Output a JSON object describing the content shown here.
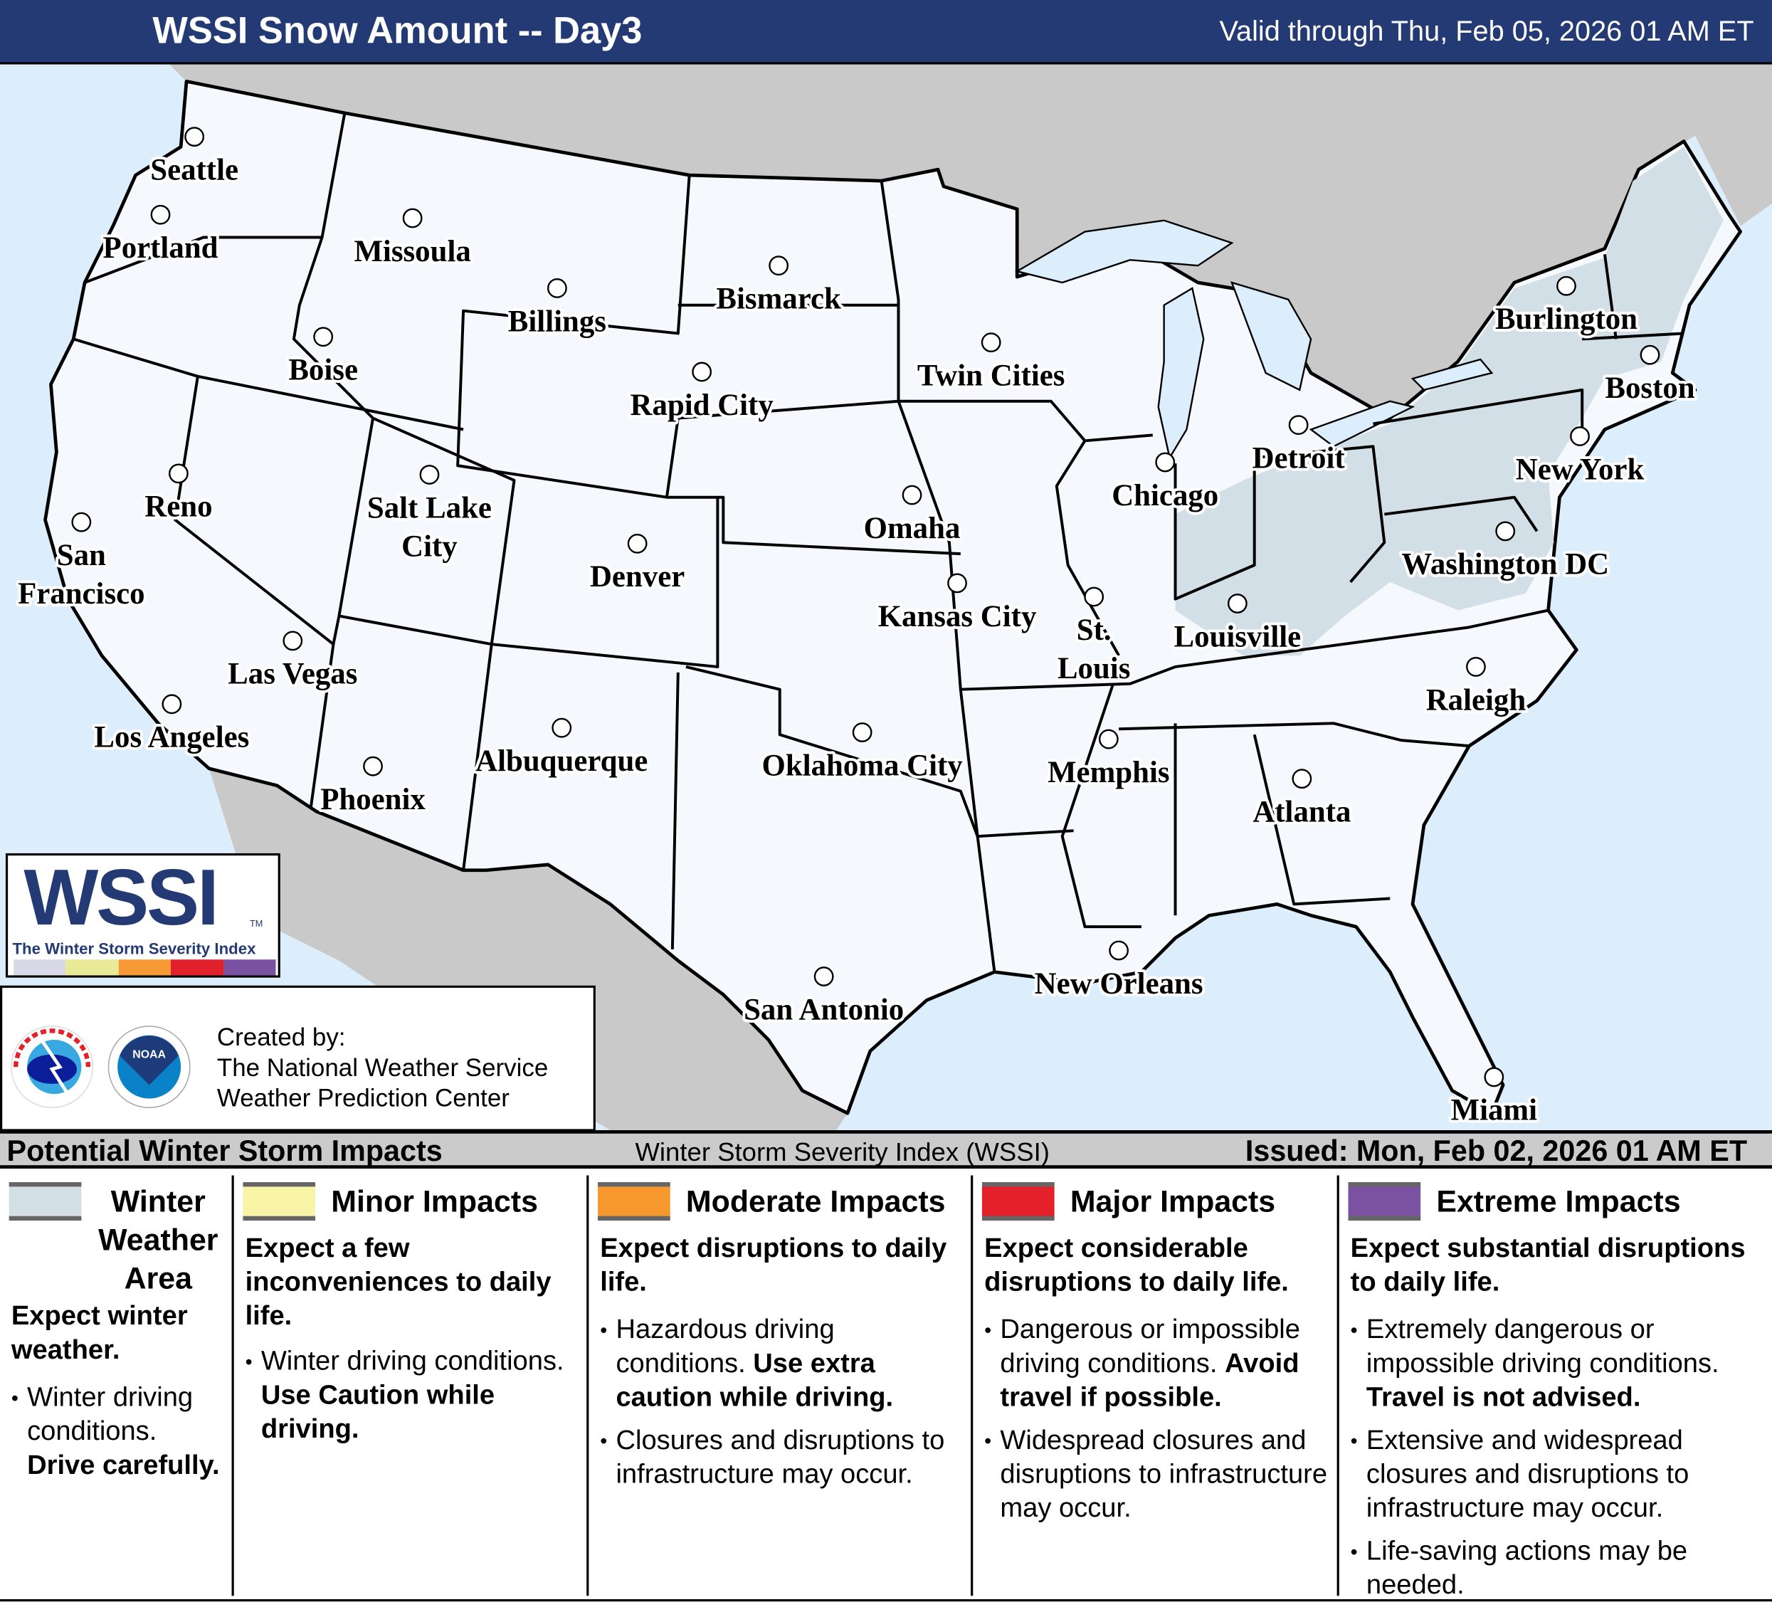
{
  "header": {
    "title": "WSSI Snow Amount -- Day3",
    "valid": "Valid through Thu, Feb 05, 2026 01 AM ET"
  },
  "colors": {
    "header_bg": "#243a74",
    "ocean": "#dcedfb",
    "foreign_land": "#c9c9c9",
    "us_land": "#f5f8fc",
    "winter_weather_area": "#d3dfe7",
    "minor": "#f9f5a6",
    "moderate": "#f7982f",
    "major": "#e4212a",
    "extreme": "#7b52a1",
    "logo_bar": [
      "#d9d8e6",
      "#e8ea98",
      "#f79a36",
      "#e0202b",
      "#7b52a1"
    ]
  },
  "cities": [
    {
      "name": "Seattle",
      "lines": [
        "Seattle"
      ]
    },
    {
      "name": "Portland",
      "lines": [
        "Portland"
      ]
    },
    {
      "name": "Missoula",
      "lines": [
        "Missoula"
      ]
    },
    {
      "name": "Billings",
      "lines": [
        "Billings"
      ]
    },
    {
      "name": "Boise",
      "lines": [
        "Boise"
      ]
    },
    {
      "name": "Bismarck",
      "lines": [
        "Bismarck"
      ]
    },
    {
      "name": "Rapid City",
      "lines": [
        "Rapid City"
      ]
    },
    {
      "name": "Twin Cities",
      "lines": [
        "Twin Cities"
      ]
    },
    {
      "name": "Burlington",
      "lines": [
        "Burlington"
      ]
    },
    {
      "name": "Boston",
      "lines": [
        "Boston"
      ]
    },
    {
      "name": "Detroit",
      "lines": [
        "Detroit"
      ]
    },
    {
      "name": "New York",
      "lines": [
        "New York"
      ]
    },
    {
      "name": "Chicago",
      "lines": [
        "Chicago"
      ]
    },
    {
      "name": "Reno",
      "lines": [
        "Reno"
      ]
    },
    {
      "name": "Salt Lake City",
      "lines": [
        "Salt Lake",
        "City"
      ]
    },
    {
      "name": "San Francisco",
      "lines": [
        "San",
        "Francisco"
      ]
    },
    {
      "name": "Omaha",
      "lines": [
        "Omaha"
      ]
    },
    {
      "name": "Denver",
      "lines": [
        "Denver"
      ]
    },
    {
      "name": "Washington DC",
      "lines": [
        "Washington DC"
      ]
    },
    {
      "name": "Kansas City",
      "lines": [
        "Kansas City"
      ]
    },
    {
      "name": "St. Louis",
      "lines": [
        "St.",
        "Louis"
      ]
    },
    {
      "name": "Louisville",
      "lines": [
        "Louisville"
      ]
    },
    {
      "name": "Las Vegas",
      "lines": [
        "Las Vegas"
      ]
    },
    {
      "name": "Raleigh",
      "lines": [
        "Raleigh"
      ]
    },
    {
      "name": "Los Angeles",
      "lines": [
        "Los Angeles"
      ]
    },
    {
      "name": "Albuquerque",
      "lines": [
        "Albuquerque"
      ]
    },
    {
      "name": "Oklahoma City",
      "lines": [
        "Oklahoma City"
      ]
    },
    {
      "name": "Memphis",
      "lines": [
        "Memphis"
      ]
    },
    {
      "name": "Phoenix",
      "lines": [
        "Phoenix"
      ]
    },
    {
      "name": "Atlanta",
      "lines": [
        "Atlanta"
      ]
    },
    {
      "name": "New Orleans",
      "lines": [
        "New Orleans"
      ]
    },
    {
      "name": "San Antonio",
      "lines": [
        "San Antonio"
      ]
    },
    {
      "name": "Miami",
      "lines": [
        "Miami"
      ]
    }
  ],
  "logo": {
    "wordmark": "WSSI",
    "tm": "TM",
    "tagline": "The Winter Storm Severity Index"
  },
  "credits": {
    "line1": "Created by:",
    "line2": "The National Weather Service",
    "line3": "Weather Prediction Center",
    "nws_seal_text": "NATIONAL WEATHER SERVICE",
    "noaa_seal_text": "NOAA"
  },
  "legend_bar": {
    "left": "Potential Winter Storm Impacts",
    "middle": "Winter Storm Severity Index (WSSI)",
    "right": "Issued: Mon, Feb 02, 2026 01 AM ET"
  },
  "legend": [
    {
      "heading_lines": [
        "Winter",
        "Weather",
        "Area"
      ],
      "summary": "Expect winter weather.",
      "bullets": [
        {
          "text": "Winter driving conditions. ",
          "bold": "Drive carefully."
        }
      ]
    },
    {
      "heading_lines": [
        "Minor Impacts"
      ],
      "summary": "Expect a few inconveniences to daily life.",
      "bullets": [
        {
          "text": "Winter driving conditions. ",
          "bold": "Use Caution while driving."
        }
      ]
    },
    {
      "heading_lines": [
        "Moderate Impacts"
      ],
      "summary": "Expect disruptions to daily life.",
      "bullets": [
        {
          "text": "Hazardous driving conditions. ",
          "bold": "Use extra caution while driving."
        },
        {
          "text": "Closures and disruptions to infrastructure may occur.",
          "bold": ""
        }
      ]
    },
    {
      "heading_lines": [
        "Major Impacts"
      ],
      "summary": "Expect considerable disruptions to daily life.",
      "bullets": [
        {
          "text": "Dangerous or impossible driving conditions. ",
          "bold": "Avoid travel if possible."
        },
        {
          "text": "Widespread closures and disruptions to infrastructure may occur.",
          "bold": ""
        }
      ]
    },
    {
      "heading_lines": [
        "Extreme Impacts"
      ],
      "summary": "Expect substantial disruptions to daily life.",
      "bullets": [
        {
          "text": "Extremely dangerous or impossible driving conditions. ",
          "bold": "Travel is not advised."
        },
        {
          "text": "Extensive and widespread closures and disruptions to infrastructure may occur.",
          "bold": ""
        },
        {
          "text": "Life-saving actions may be needed.",
          "bold": ""
        }
      ]
    }
  ]
}
